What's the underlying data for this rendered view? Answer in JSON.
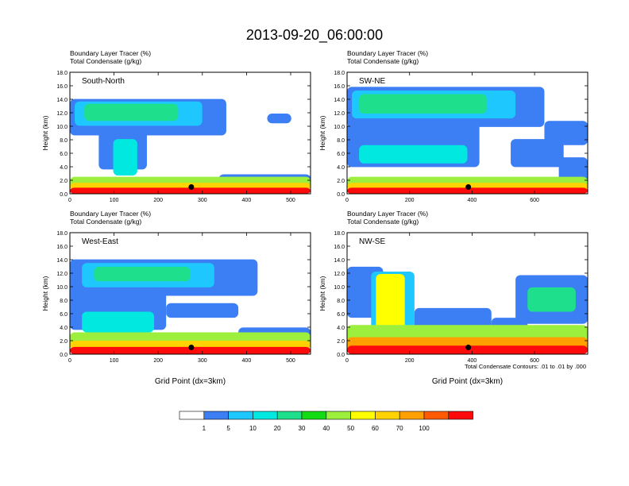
{
  "title": "2013-09-20_06:00:00",
  "colors": [
    "#ffffff",
    "#3c7ff5",
    "#1ec8ff",
    "#00e8e0",
    "#1ee08c",
    "#14dc14",
    "#9cef3c",
    "#ffff00",
    "#ffd200",
    "#ffa000",
    "#ff5a00",
    "#ff0a0a"
  ],
  "legend": {
    "labels": [
      "1",
      "5",
      "10",
      "20",
      "30",
      "40",
      "50",
      "60",
      "70",
      "100"
    ]
  },
  "footnote": "Total Condensate Contours: .01 to .01 by .000",
  "chart_data": [
    {
      "type": "heatmap",
      "panel_label": "South-North",
      "title_line1": "Boundary Layer Tracer   (%)",
      "title_line2": "Total Condensate   (g/kg)",
      "ylabel": "Height (km)",
      "xlabel": "",
      "ylim": [
        0,
        18
      ],
      "xlim": [
        0,
        545
      ],
      "yticks": [
        "0.0",
        "2.0",
        "4.0",
        "6.0",
        "8.0",
        "10.0",
        "12.0",
        "14.0",
        "16.0",
        "18.0"
      ],
      "xticks": [
        0,
        100,
        200,
        300,
        400,
        500
      ],
      "marker": {
        "x": 275,
        "y": 1.0
      }
    },
    {
      "type": "heatmap",
      "panel_label": "SW-NE",
      "title_line1": "Boundary Layer Tracer   (%)",
      "title_line2": "Total Condensate   (g/kg)",
      "ylabel": "Height (km)",
      "xlabel": "",
      "ylim": [
        0,
        18
      ],
      "xlim": [
        0,
        770
      ],
      "yticks": [
        "0.0",
        "2.0",
        "4.0",
        "6.0",
        "8.0",
        "10.0",
        "12.0",
        "14.0",
        "16.0",
        "18.0"
      ],
      "xticks": [
        0,
        200,
        400,
        600
      ],
      "marker": {
        "x": 388,
        "y": 1.0
      }
    },
    {
      "type": "heatmap",
      "panel_label": "West-East",
      "title_line1": "Boundary Layer Tracer   (%)",
      "title_line2": "Total Condensate   (g/kg)",
      "ylabel": "Height (km)",
      "xlabel": "Grid Point (dx=3km)",
      "ylim": [
        0,
        18
      ],
      "xlim": [
        0,
        545
      ],
      "yticks": [
        "0.0",
        "2.0",
        "4.0",
        "6.0",
        "8.0",
        "10.0",
        "12.0",
        "14.0",
        "16.0",
        "18.0"
      ],
      "xticks": [
        0,
        100,
        200,
        300,
        400,
        500
      ],
      "marker": {
        "x": 275,
        "y": 1.0
      }
    },
    {
      "type": "heatmap",
      "panel_label": "NW-SE",
      "title_line1": "Boundary Layer Tracer   (%)",
      "title_line2": "Total Condensate   (g/kg)",
      "ylabel": "Height (km)",
      "xlabel": "Grid Point (dx=3km)",
      "ylim": [
        0,
        18
      ],
      "xlim": [
        0,
        770
      ],
      "yticks": [
        "0.0",
        "2.0",
        "4.0",
        "6.0",
        "8.0",
        "10.0",
        "12.0",
        "14.0",
        "16.0",
        "18.0"
      ],
      "xticks": [
        0,
        200,
        400,
        600
      ],
      "marker": {
        "x": 388,
        "y": 1.0
      }
    }
  ]
}
